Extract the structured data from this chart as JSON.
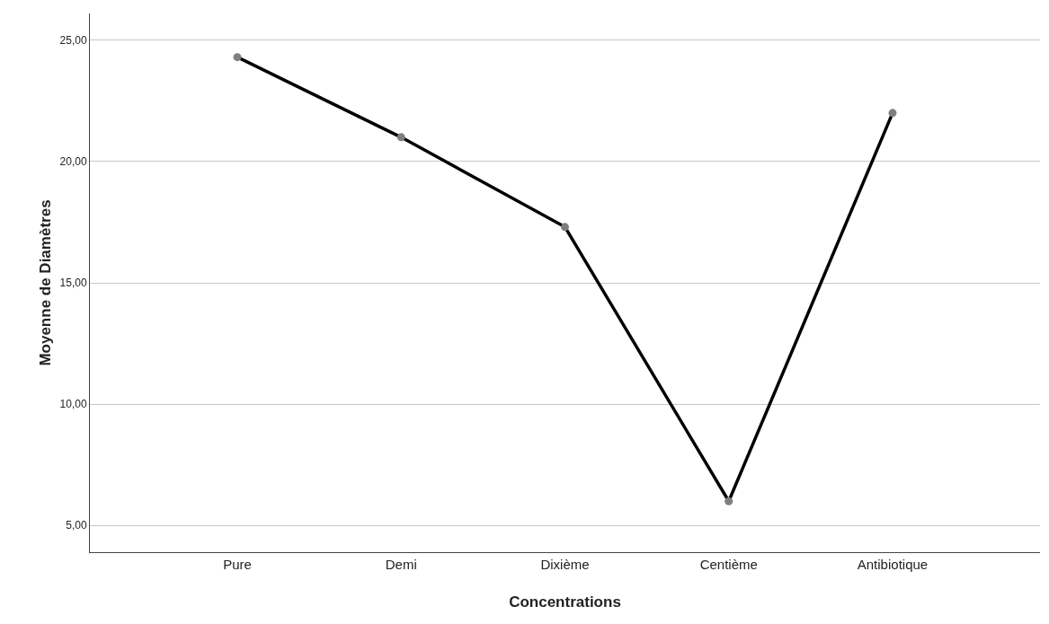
{
  "chart_data": {
    "type": "line",
    "xlabel": "Concentrations",
    "ylabel": "Moyenne de Diamètres",
    "categories": [
      "Pure",
      "Demi",
      "Dixième",
      "Centième",
      "Antibiotique"
    ],
    "series": [
      {
        "color": "#000000",
        "values": [
          24.3,
          21.0,
          17.3,
          6.0,
          22.0
        ]
      }
    ],
    "ylim": [
      3.9,
      26.1
    ],
    "yticks": [
      {
        "value": 5,
        "label": "5,00"
      },
      {
        "value": 10,
        "label": "10,00"
      },
      {
        "value": 15,
        "label": "15,00"
      },
      {
        "value": 20,
        "label": "20,00"
      },
      {
        "value": 25,
        "label": "25,00"
      }
    ],
    "grid": "y",
    "legend": false,
    "marker": "circle",
    "line_style": "solid"
  }
}
